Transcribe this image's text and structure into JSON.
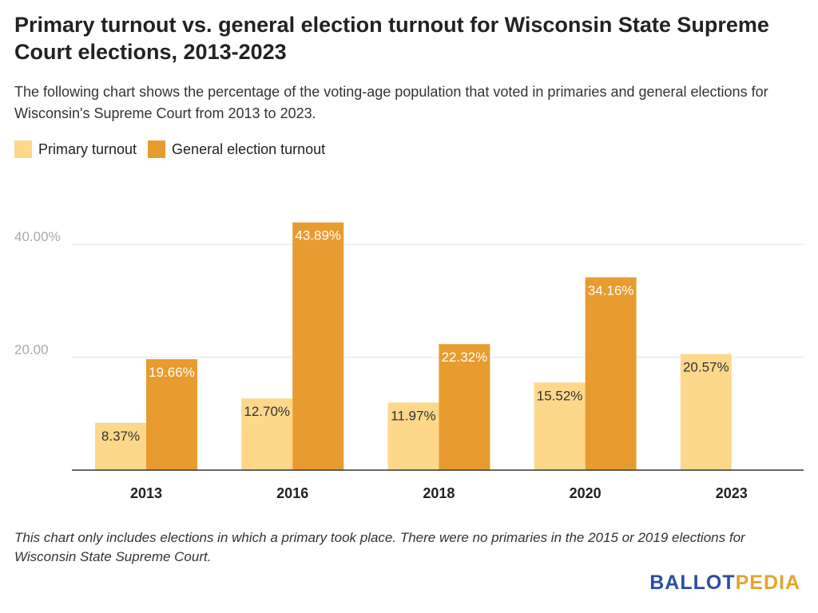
{
  "header": {
    "title": "Primary turnout vs. general election turnout for Wisconsin State Supreme Court elections, 2013-2023",
    "subtitle": "The following chart shows the percentage of the voting-age population that voted in primaries and general elections for Wisconsin's Supreme Court from 2013 to 2023."
  },
  "colors": {
    "primary": "#fdd88b",
    "general": "#e89c2f",
    "gridline": "#e3e3e3",
    "axis": "#333333",
    "ticklabel": "#aaaaaa"
  },
  "chart_data": {
    "type": "bar",
    "categories": [
      "2013",
      "2016",
      "2018",
      "2020",
      "2023"
    ],
    "series": [
      {
        "name": "Primary turnout",
        "values": [
          8.37,
          12.7,
          11.97,
          15.52,
          20.57
        ],
        "labels": [
          "8.37%",
          "12.70%",
          "11.97%",
          "15.52%",
          "20.57%"
        ]
      },
      {
        "name": "General election turnout",
        "values": [
          19.66,
          43.89,
          22.32,
          34.16,
          null
        ],
        "labels": [
          "19.66%",
          "43.89%",
          "22.32%",
          "34.16%",
          ""
        ]
      }
    ],
    "yticks": [
      {
        "value": 20,
        "label": "20.00"
      },
      {
        "value": 40,
        "label": "40.00%"
      }
    ],
    "ylim": [
      0,
      47
    ],
    "grid": true,
    "legend": "top-left"
  },
  "footnote": "This chart only includes elections in which a primary took place. There were no primaries in the 2015 or 2019 elections for Wisconsin State Supreme Court.",
  "logo": {
    "part1": "BALLOT",
    "part2": "PEDIA"
  }
}
